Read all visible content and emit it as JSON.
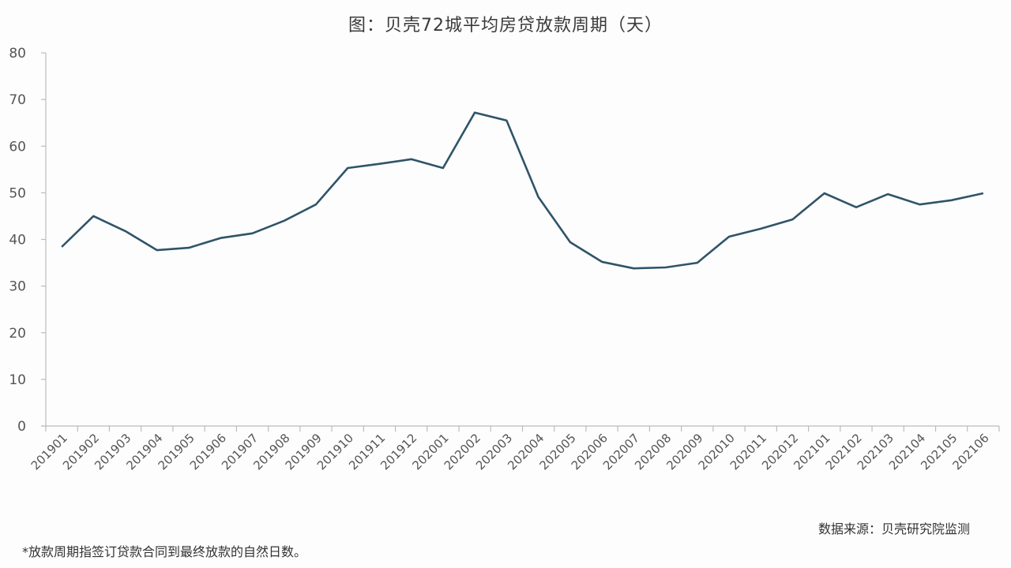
{
  "chart_data": {
    "type": "line",
    "title": "图：贝壳72城平均房贷放款周期（天）",
    "xlabel": "",
    "ylabel": "",
    "ylim": [
      0,
      80
    ],
    "yticks": [
      0,
      10,
      20,
      30,
      40,
      50,
      60,
      70,
      80
    ],
    "grid": false,
    "legend": null,
    "categories": [
      "201901",
      "201902",
      "201903",
      "201904",
      "201905",
      "201906",
      "201907",
      "201908",
      "201909",
      "201910",
      "201911",
      "201912",
      "202001",
      "202002",
      "202003",
      "202004",
      "202005",
      "202006",
      "202007",
      "202008",
      "202009",
      "202010",
      "202011",
      "202012",
      "202101",
      "202102",
      "202103",
      "202104",
      "202105",
      "202106"
    ],
    "series": [
      {
        "name": "平均房贷放款周期",
        "color": "#2f5468",
        "values": [
          38.4,
          45.0,
          41.8,
          37.7,
          38.2,
          40.3,
          41.3,
          44.0,
          47.5,
          55.3,
          56.2,
          57.2,
          55.3,
          67.2,
          65.5,
          49.1,
          39.4,
          35.2,
          33.8,
          34.0,
          35.0,
          40.6,
          42.3,
          44.3,
          49.9,
          46.9,
          49.7,
          47.5,
          48.4,
          49.9
        ]
      }
    ],
    "annotations": {
      "source": "数据来源：贝壳研究院监测",
      "footnote": "*放款周期指签订贷款合同到最终放款的自然日数。"
    }
  },
  "page": {
    "title": "图：贝壳72城平均房贷放款周期（天）",
    "source": "数据来源：贝壳研究院监测",
    "footnote": "*放款周期指签订贷款合同到最终放款的自然日数。"
  }
}
